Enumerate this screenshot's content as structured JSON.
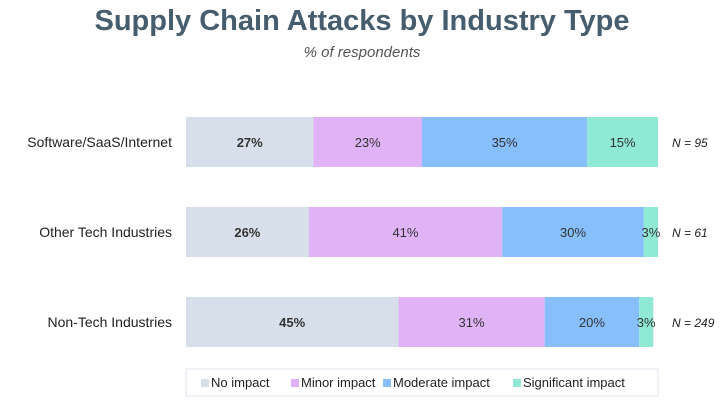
{
  "chart_data": {
    "type": "bar",
    "orientation": "horizontal",
    "stacked": true,
    "title": "Supply Chain Attacks by Industry Type",
    "subtitle": "% of respondents",
    "categories": [
      "Software/SaaS/Internet",
      "Other Tech Industries",
      "Non-Tech Industries"
    ],
    "sample_sizes": [
      "N = 95",
      "N = 61",
      "N = 249"
    ],
    "series": [
      {
        "name": "No impact",
        "values": [
          27,
          26,
          45
        ],
        "color": "#d7e0ea",
        "label_bold": true
      },
      {
        "name": "Minor impact",
        "values": [
          23,
          41,
          31
        ],
        "color": "#e0b3f6"
      },
      {
        "name": "Moderate impact",
        "values": [
          35,
          30,
          20
        ],
        "color": "#87befc"
      },
      {
        "name": "Significant impact",
        "values": [
          15,
          3,
          3
        ],
        "color": "#8fe9d5"
      }
    ],
    "xlim": [
      0,
      100
    ],
    "grid": false,
    "legend": "bottom",
    "title_color": "#465d6d"
  }
}
